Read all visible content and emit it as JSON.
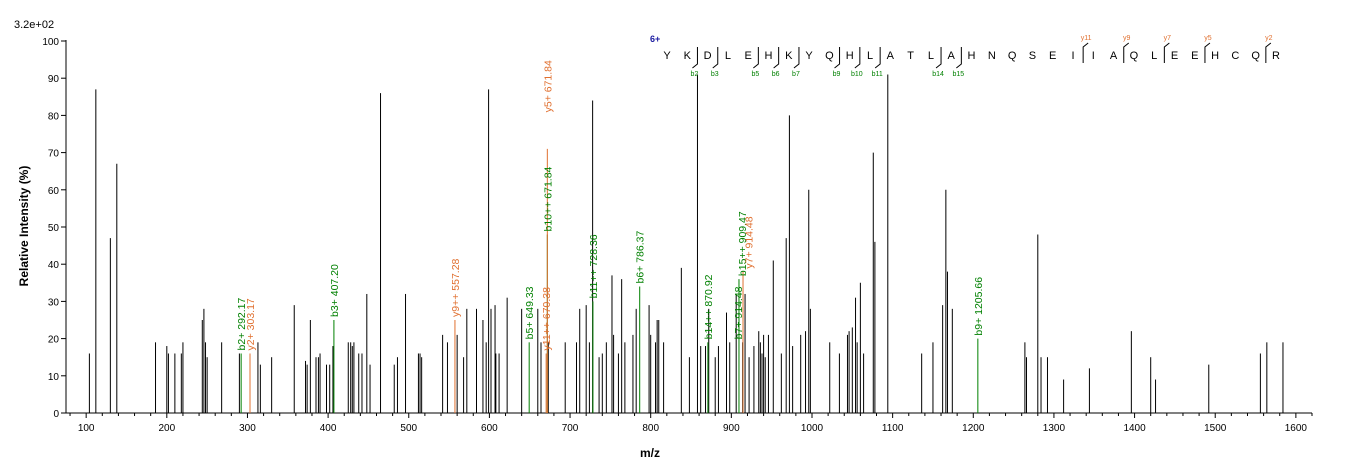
{
  "chart_data": {
    "type": "bar",
    "title": "",
    "xlabel": "m/z",
    "ylabel": "Relative   Intensity (%)",
    "scale_label": "3.2e+02",
    "xlim": [
      75,
      1620
    ],
    "ylim": [
      0,
      100
    ],
    "x_ticks": [
      100,
      200,
      300,
      400,
      500,
      600,
      700,
      800,
      900,
      1000,
      1100,
      1200,
      1300,
      1400,
      1500,
      1600
    ],
    "y_ticks": [
      0,
      10,
      20,
      30,
      40,
      50,
      60,
      70,
      80,
      90,
      100
    ],
    "colors": {
      "unassigned": "#000000",
      "b_ion": "#008000",
      "y_ion": "#e07030",
      "charge": "#1a1aa0",
      "axis": "#000000"
    },
    "series": [
      {
        "name": "unassigned",
        "points": [
          [
            104,
            16
          ],
          [
            112,
            87
          ],
          [
            130,
            47
          ],
          [
            138,
            67
          ],
          [
            186,
            19
          ],
          [
            200,
            18
          ],
          [
            202,
            16
          ],
          [
            210,
            16
          ],
          [
            218,
            16
          ],
          [
            220,
            19
          ],
          [
            244,
            25
          ],
          [
            246,
            28
          ],
          [
            248,
            19
          ],
          [
            250,
            15
          ],
          [
            268,
            19
          ],
          [
            290,
            16
          ],
          [
            313,
            19
          ],
          [
            316,
            13
          ],
          [
            330,
            15
          ],
          [
            358,
            29
          ],
          [
            372,
            14
          ],
          [
            374,
            13
          ],
          [
            378,
            25
          ],
          [
            385,
            15
          ],
          [
            388,
            15
          ],
          [
            390,
            16
          ],
          [
            398,
            13
          ],
          [
            402,
            13
          ],
          [
            406,
            18
          ],
          [
            425,
            19
          ],
          [
            428,
            19
          ],
          [
            430,
            18
          ],
          [
            432,
            19
          ],
          [
            438,
            16
          ],
          [
            442,
            16
          ],
          [
            448,
            32
          ],
          [
            452,
            13
          ],
          [
            465,
            86
          ],
          [
            482,
            13
          ],
          [
            486,
            15
          ],
          [
            496,
            32
          ],
          [
            512,
            16
          ],
          [
            514,
            16
          ],
          [
            516,
            15
          ],
          [
            542,
            21
          ],
          [
            548,
            19
          ],
          [
            560,
            21
          ],
          [
            568,
            15
          ],
          [
            572,
            28
          ],
          [
            584,
            28
          ],
          [
            592,
            25
          ],
          [
            596,
            19
          ],
          [
            599,
            87
          ],
          [
            602,
            28
          ],
          [
            607,
            29
          ],
          [
            608,
            16
          ],
          [
            612,
            16
          ],
          [
            622,
            31
          ],
          [
            640,
            28
          ],
          [
            660,
            28
          ],
          [
            664,
            19
          ],
          [
            673,
            19
          ],
          [
            694,
            19
          ],
          [
            708,
            19
          ],
          [
            712,
            28
          ],
          [
            720,
            29
          ],
          [
            724,
            19
          ],
          [
            728,
            84
          ],
          [
            736,
            15
          ],
          [
            740,
            16
          ],
          [
            745,
            19
          ],
          [
            752,
            37
          ],
          [
            754,
            21
          ],
          [
            760,
            16
          ],
          [
            764,
            36
          ],
          [
            768,
            19
          ],
          [
            778,
            21
          ],
          [
            782,
            28
          ],
          [
            798,
            29
          ],
          [
            800,
            21
          ],
          [
            806,
            19
          ],
          [
            808,
            25
          ],
          [
            810,
            25
          ],
          [
            816,
            19
          ],
          [
            838,
            39
          ],
          [
            848,
            15
          ],
          [
            858,
            91
          ],
          [
            862,
            18
          ],
          [
            868,
            18
          ],
          [
            872,
            28
          ],
          [
            880,
            15
          ],
          [
            884,
            18
          ],
          [
            894,
            27
          ],
          [
            898,
            19
          ],
          [
            906,
            32
          ],
          [
            914,
            19
          ],
          [
            917,
            32
          ],
          [
            922,
            15
          ],
          [
            928,
            18
          ],
          [
            934,
            22
          ],
          [
            936,
            19
          ],
          [
            938,
            16
          ],
          [
            940,
            21
          ],
          [
            942,
            15
          ],
          [
            946,
            21
          ],
          [
            952,
            41
          ],
          [
            962,
            16
          ],
          [
            968,
            47
          ],
          [
            972,
            80
          ],
          [
            976,
            18
          ],
          [
            986,
            21
          ],
          [
            992,
            22
          ],
          [
            996,
            60
          ],
          [
            998,
            28
          ],
          [
            1022,
            19
          ],
          [
            1034,
            16
          ],
          [
            1044,
            21
          ],
          [
            1046,
            22
          ],
          [
            1050,
            23
          ],
          [
            1054,
            31
          ],
          [
            1056,
            19
          ],
          [
            1060,
            35
          ],
          [
            1064,
            16
          ],
          [
            1076,
            70
          ],
          [
            1078,
            46
          ],
          [
            1094,
            91
          ],
          [
            1136,
            16
          ],
          [
            1150,
            19
          ],
          [
            1162,
            29
          ],
          [
            1166,
            60
          ],
          [
            1168,
            38
          ],
          [
            1174,
            28
          ],
          [
            1264,
            19
          ],
          [
            1266,
            15
          ],
          [
            1280,
            48
          ],
          [
            1284,
            15
          ],
          [
            1292,
            15
          ],
          [
            1312,
            9
          ],
          [
            1344,
            12
          ],
          [
            1396,
            22
          ],
          [
            1420,
            15
          ],
          [
            1426,
            9
          ],
          [
            1492,
            13
          ],
          [
            1556,
            16
          ],
          [
            1564,
            19
          ],
          [
            1584,
            19
          ]
        ]
      },
      {
        "name": "b",
        "points": [
          [
            292.17,
            16
          ],
          [
            407.2,
            25
          ],
          [
            649.33,
            19
          ],
          [
            671.84,
            48
          ],
          [
            728.36,
            30
          ],
          [
            786.37,
            34
          ],
          [
            870.92,
            19
          ],
          [
            914.48,
            19
          ],
          [
            909.47,
            36
          ],
          [
            1205.66,
            20
          ]
        ]
      },
      {
        "name": "y",
        "points": [
          [
            303.17,
            16
          ],
          [
            557.28,
            25
          ],
          [
            670.38,
            16
          ],
          [
            671.84,
            71
          ],
          [
            914.48,
            38
          ]
        ]
      }
    ],
    "annotations": [
      {
        "text": "b2+ 292.17",
        "x": 292.17,
        "y": 16,
        "ion": "b"
      },
      {
        "text": "y2+ 303.17",
        "x": 303.17,
        "y": 16,
        "ion": "y"
      },
      {
        "text": "b3+ 407.20",
        "x": 407.2,
        "y": 25,
        "ion": "b"
      },
      {
        "text": "y9++ 557.28",
        "x": 557.28,
        "y": 25,
        "ion": "y"
      },
      {
        "text": "b5+ 649.33",
        "x": 649.33,
        "y": 19,
        "ion": "b"
      },
      {
        "text": "y11++ 670.38",
        "x": 670.38,
        "y": 16,
        "ion": "y"
      },
      {
        "text": "b10++ 671.84",
        "x": 671.84,
        "y": 48,
        "ion": "b"
      },
      {
        "text": "y5+ 671.84",
        "x": 671.84,
        "y": 80,
        "ion": "y"
      },
      {
        "text": "b11++ 728.36",
        "x": 728.36,
        "y": 30,
        "ion": "b"
      },
      {
        "text": "b6+ 786.37",
        "x": 786.37,
        "y": 34,
        "ion": "b"
      },
      {
        "text": "b14++ 870.92",
        "x": 870.92,
        "y": 19,
        "ion": "b"
      },
      {
        "text": "b7+ 914.48",
        "x": 908.5,
        "y": 19,
        "ion": "b"
      },
      {
        "text": "b15++ 909.47",
        "x": 913.5,
        "y": 36,
        "ion": "b"
      },
      {
        "text": "y7+ 914.48",
        "x": 921,
        "y": 38,
        "ion": "y"
      },
      {
        "text": "b9+ 1205.66",
        "x": 1205.66,
        "y": 20,
        "ion": "b"
      }
    ],
    "sequence": {
      "charge": "6+",
      "residues": [
        "Y",
        "K",
        "D",
        "L",
        "E",
        "H",
        "K",
        "Y",
        "Q",
        "H",
        "L",
        "A",
        "T",
        "L",
        "A",
        "H",
        "N",
        "Q",
        "S",
        "E",
        "I",
        "I",
        "A",
        "Q",
        "L",
        "E",
        "E",
        "H",
        "C",
        "Q",
        "R"
      ],
      "b_labels": [
        {
          "label": "b2",
          "after": 2
        },
        {
          "label": "b3",
          "after": 3
        },
        {
          "label": "b5",
          "after": 5
        },
        {
          "label": "b6",
          "after": 6
        },
        {
          "label": "b7",
          "after": 7
        },
        {
          "label": "b9",
          "after": 9
        },
        {
          "label": "b10",
          "after": 10
        },
        {
          "label": "b11",
          "after": 11
        },
        {
          "label": "b14",
          "after": 14
        },
        {
          "label": "b15",
          "after": 15
        }
      ],
      "y_labels": [
        {
          "label": "y11",
          "before": 21
        },
        {
          "label": "y9",
          "before": 23
        },
        {
          "label": "y7",
          "before": 25
        },
        {
          "label": "y5",
          "before": 27
        },
        {
          "label": "y2",
          "before": 30
        }
      ]
    }
  }
}
